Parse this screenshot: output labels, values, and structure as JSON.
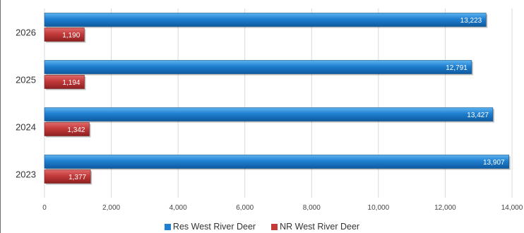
{
  "chart_data": {
    "type": "bar",
    "orientation": "horizontal",
    "categories": [
      "2026",
      "2025",
      "2024",
      "2023"
    ],
    "series": [
      {
        "name": "Res West River Deer",
        "values": [
          13223,
          12791,
          13427,
          13907
        ],
        "labels": [
          "13,223",
          "12,791",
          "13,427",
          "13,907"
        ],
        "color": "#1f7fd0"
      },
      {
        "name": "NR West River Deer",
        "values": [
          1190,
          1194,
          1342,
          1377
        ],
        "labels": [
          "1,190",
          "1,194",
          "1,342",
          "1,377"
        ],
        "color": "#c43a3a"
      }
    ],
    "xlim": [
      0,
      14000
    ],
    "x_ticks": [
      0,
      2000,
      4000,
      6000,
      8000,
      10000,
      12000,
      14000
    ],
    "x_tick_labels": [
      "0",
      "2,000",
      "4,000",
      "6,000",
      "8,000",
      "10,000",
      "12,000",
      "14,000"
    ],
    "grid": true,
    "legend_position": "bottom",
    "title": "",
    "xlabel": "",
    "ylabel": ""
  },
  "legend": {
    "items": [
      {
        "label": "Res West River Deer",
        "color": "#1f7fd0"
      },
      {
        "label": "NR West River Deer",
        "color": "#c43a3a"
      }
    ]
  }
}
